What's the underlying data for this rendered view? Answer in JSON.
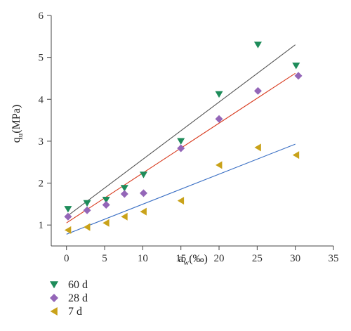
{
  "chart_data": {
    "type": "scatter",
    "xlabel_main": "a",
    "xlabel_sub": "w",
    "xlabel_unit": "(‰)",
    "ylabel_main": "q",
    "ylabel_sub": "u",
    "ylabel_unit": "(MPa)",
    "xlim": [
      -2,
      35
    ],
    "ylim": [
      0.5,
      6
    ],
    "xticks": [
      0,
      5,
      10,
      15,
      20,
      25,
      30,
      35
    ],
    "yticks": [
      1,
      2,
      3,
      4,
      5,
      6
    ],
    "grid": false,
    "legend_position": "bottom-left",
    "series": [
      {
        "name": "60 d",
        "marker": "triangle-down",
        "color": "#1e8c5a",
        "line_color": "#555555",
        "x": [
          0.2,
          2.7,
          5.2,
          7.6,
          10.1,
          15.0,
          20.0,
          25.1,
          30.1
        ],
        "y": [
          1.38,
          1.52,
          1.6,
          1.88,
          2.2,
          3.0,
          4.12,
          5.3,
          4.8
        ],
        "fit": {
          "x": [
            0,
            30
          ],
          "y": [
            1.2,
            5.3
          ]
        }
      },
      {
        "name": "28 d",
        "marker": "diamond",
        "color": "#9466b8",
        "line_color": "#d83a1e",
        "x": [
          0.2,
          2.7,
          5.2,
          7.6,
          10.1,
          15.0,
          20.0,
          25.1,
          30.4
        ],
        "y": [
          1.2,
          1.35,
          1.48,
          1.74,
          1.76,
          2.83,
          3.53,
          4.2,
          4.56
        ],
        "fit": {
          "x": [
            0,
            30
          ],
          "y": [
            1.05,
            4.62
          ]
        }
      },
      {
        "name": "7 d",
        "marker": "triangle-left",
        "color": "#c9a21a",
        "line_color": "#3a6fc4",
        "x": [
          0.2,
          2.7,
          5.2,
          7.6,
          10.1,
          15.0,
          20.0,
          25.1,
          30.1
        ],
        "y": [
          0.88,
          0.95,
          1.05,
          1.2,
          1.32,
          1.58,
          2.43,
          2.85,
          2.67
        ],
        "fit": {
          "x": [
            0,
            30
          ],
          "y": [
            0.78,
            2.93
          ]
        }
      }
    ]
  }
}
